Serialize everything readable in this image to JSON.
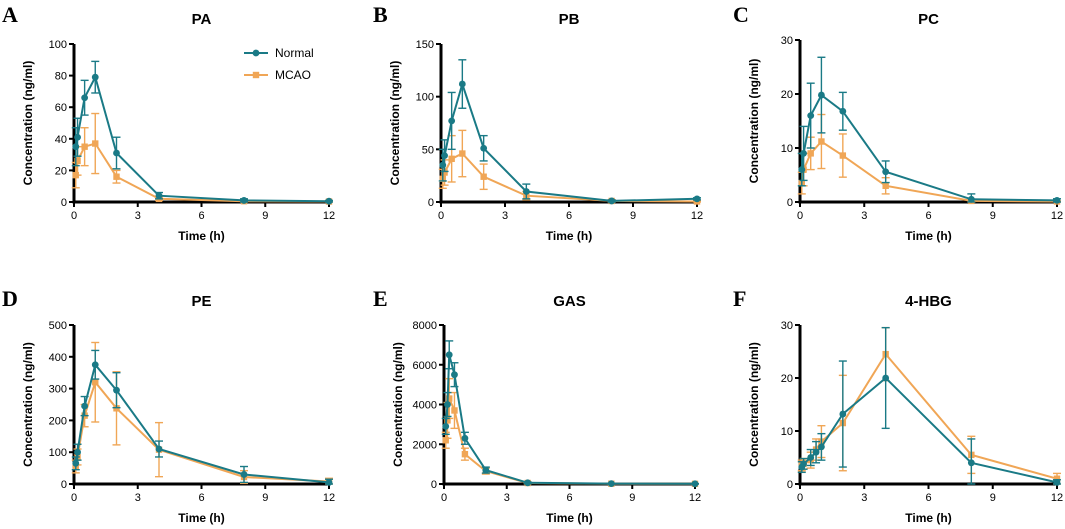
{
  "colors": {
    "normal": "#1a7a86",
    "mcao": "#f0a656",
    "axis": "#000000"
  },
  "legend": {
    "normal_label": "Normal",
    "mcao_label": "MCAO"
  },
  "chart_data": [
    {
      "id": "A",
      "letter": "A",
      "title": "PA",
      "type": "line",
      "xlabel": "Time (h)",
      "ylabel": "Concentration (ng/ml)",
      "xlim": [
        0,
        12
      ],
      "xticks": [
        0,
        3,
        6,
        9,
        12
      ],
      "ylim": [
        0,
        100
      ],
      "yticks": [
        0,
        20,
        40,
        60,
        80,
        100
      ],
      "series": [
        {
          "name": "Normal",
          "x": [
            0.083,
            0.167,
            0.5,
            1,
            2,
            4,
            8,
            12
          ],
          "y": [
            35,
            41,
            66,
            79,
            31,
            4,
            1,
            0.5
          ],
          "err": [
            12,
            12,
            11,
            10,
            10,
            2,
            1,
            0.5
          ]
        },
        {
          "name": "MCAO",
          "x": [
            0.083,
            0.167,
            0.5,
            1,
            2,
            4,
            8,
            12
          ],
          "y": [
            17,
            26,
            35,
            37,
            16,
            2,
            0.5,
            0.3
          ],
          "err": [
            8,
            9,
            12,
            19,
            4,
            1,
            0.5,
            0.3
          ]
        }
      ]
    },
    {
      "id": "B",
      "letter": "B",
      "title": "PB",
      "type": "line",
      "xlabel": "Time (h)",
      "ylabel": "Concentration (ng/ml)",
      "xlim": [
        0,
        12
      ],
      "xticks": [
        0,
        3,
        6,
        9,
        12
      ],
      "ylim": [
        0,
        150
      ],
      "yticks": [
        0,
        50,
        100,
        150
      ],
      "series": [
        {
          "name": "Normal",
          "x": [
            0.083,
            0.167,
            0.5,
            1,
            2,
            4,
            8,
            12
          ],
          "y": [
            35,
            44,
            77,
            112,
            51,
            10,
            1,
            3
          ],
          "err": [
            15,
            15,
            27,
            23,
            12,
            7,
            1,
            1
          ]
        },
        {
          "name": "MCAO",
          "x": [
            0.083,
            0.167,
            0.5,
            1,
            2,
            4,
            8,
            12
          ],
          "y": [
            22,
            28,
            41,
            46,
            24,
            6,
            1,
            0.5
          ],
          "err": [
            9,
            12,
            22,
            22,
            12,
            4,
            1,
            0.5
          ]
        }
      ]
    },
    {
      "id": "C",
      "letter": "C",
      "title": "PC",
      "type": "line",
      "xlabel": "Time (h)",
      "ylabel": "Concentration (ng/ml)",
      "xlim": [
        0,
        12
      ],
      "xticks": [
        0,
        3,
        6,
        9,
        12
      ],
      "ylim": [
        0,
        30
      ],
      "yticks": [
        0,
        10,
        20,
        30
      ],
      "series": [
        {
          "name": "Normal",
          "x": [
            0.083,
            0.167,
            0.5,
            1,
            2,
            4,
            8,
            12
          ],
          "y": [
            6,
            9,
            16,
            19.8,
            16.8,
            5.6,
            0.5,
            0.3
          ],
          "err": [
            3,
            5,
            6,
            7,
            3.5,
            2,
            1,
            0.3
          ]
        },
        {
          "name": "MCAO",
          "x": [
            0.083,
            0.167,
            0.5,
            1,
            2,
            4,
            8,
            12
          ],
          "y": [
            3.5,
            6,
            9,
            11.2,
            8.6,
            3,
            0.2,
            0.1
          ],
          "err": [
            2,
            3,
            3,
            5,
            4,
            1.5,
            0.3,
            0.1
          ]
        }
      ]
    },
    {
      "id": "D",
      "letter": "D",
      "title": "PE",
      "type": "line",
      "xlabel": "Time (h)",
      "ylabel": "Concentration (ng/ml)",
      "xlim": [
        0,
        12
      ],
      "xticks": [
        0,
        3,
        6,
        9,
        12
      ],
      "ylim": [
        0,
        500
      ],
      "yticks": [
        0,
        100,
        200,
        300,
        400,
        500
      ],
      "series": [
        {
          "name": "Normal",
          "x": [
            0.083,
            0.167,
            0.5,
            1,
            2,
            4,
            8,
            12
          ],
          "y": [
            65,
            100,
            245,
            375,
            295,
            110,
            30,
            5
          ],
          "err": [
            20,
            25,
            30,
            45,
            55,
            25,
            25,
            10
          ]
        },
        {
          "name": "MCAO",
          "x": [
            0.083,
            0.167,
            0.5,
            1,
            2,
            4,
            8,
            12
          ],
          "y": [
            55,
            85,
            215,
            320,
            238,
            108,
            22,
            8
          ],
          "err": [
            20,
            25,
            35,
            125,
            115,
            85,
            20,
            10
          ]
        }
      ]
    },
    {
      "id": "E",
      "letter": "E",
      "title": "GAS",
      "type": "line",
      "xlabel": "Time (h)",
      "ylabel": "Concentration (ng/ml)",
      "xlim": [
        0,
        12
      ],
      "xticks": [
        0,
        3,
        6,
        9,
        12
      ],
      "ylim": [
        0,
        8000
      ],
      "yticks": [
        0,
        2000,
        4000,
        6000,
        8000
      ],
      "series": [
        {
          "name": "Normal",
          "x": [
            0.083,
            0.167,
            0.25,
            0.5,
            1,
            2,
            4,
            8,
            12
          ],
          "y": [
            2900,
            4000,
            6500,
            5500,
            2300,
            700,
            60,
            20,
            10
          ],
          "err": [
            400,
            600,
            700,
            600,
            300,
            150,
            40,
            20,
            10
          ]
        },
        {
          "name": "MCAO",
          "x": [
            0.083,
            0.167,
            0.25,
            0.5,
            1,
            2,
            4,
            8,
            12
          ],
          "y": [
            2200,
            3200,
            4300,
            3700,
            1500,
            650,
            50,
            15,
            8
          ],
          "err": [
            400,
            900,
            1000,
            900,
            300,
            150,
            40,
            15,
            8
          ]
        }
      ]
    },
    {
      "id": "F",
      "letter": "F",
      "title": "4-HBG",
      "type": "line",
      "xlabel": "Time (h)",
      "ylabel": "Concentration (ng/ml)",
      "xlim": [
        0,
        12
      ],
      "xticks": [
        0,
        3,
        6,
        9,
        12
      ],
      "ylim": [
        0,
        30
      ],
      "yticks": [
        0,
        10,
        20,
        30
      ],
      "series": [
        {
          "name": "Normal",
          "x": [
            0.083,
            0.167,
            0.5,
            0.75,
            1,
            2,
            4,
            8,
            12
          ],
          "y": [
            3.2,
            3.8,
            5,
            6,
            7,
            13.2,
            20,
            4,
            0.3
          ],
          "err": [
            1,
            1,
            1.5,
            2,
            2.5,
            10,
            9.5,
            4.5,
            0.5
          ]
        },
        {
          "name": "MCAO",
          "x": [
            0.083,
            0.167,
            0.5,
            0.75,
            1,
            2,
            4,
            8,
            12
          ],
          "y": [
            3.5,
            3.8,
            4.5,
            6.5,
            8,
            11.5,
            24.5,
            5.5,
            1
          ],
          "err": [
            1,
            1,
            1.5,
            2,
            3,
            9,
            5,
            3.5,
            1
          ]
        }
      ]
    }
  ]
}
